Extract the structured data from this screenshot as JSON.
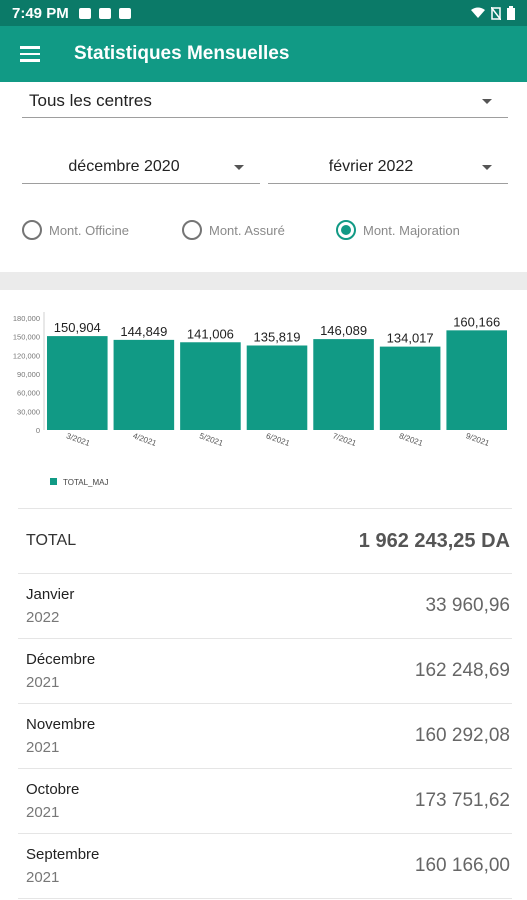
{
  "status_bar": {
    "time": "7:49 PM"
  },
  "app_bar": {
    "title": "Statistiques Mensuelles"
  },
  "filters": {
    "center": "Tous les centres",
    "from": "décembre 2020",
    "to": "février 2022"
  },
  "radios": [
    {
      "label": "Mont. Officine",
      "checked": false
    },
    {
      "label": "Mont. Assuré",
      "checked": false
    },
    {
      "label": "Mont. Majoration",
      "checked": true
    }
  ],
  "chart_data": {
    "type": "bar",
    "categories": [
      "3/2021",
      "4/2021",
      "5/2021",
      "6/2021",
      "7/2021",
      "8/2021",
      "9/2021"
    ],
    "series": [
      {
        "name": "TOTAL_MAJ",
        "values": [
          150904,
          144849,
          141006,
          135819,
          146089,
          134017,
          160166
        ]
      }
    ],
    "data_labels": [
      "150,904",
      "144,849",
      "141,006",
      "135,819",
      "146,089",
      "134,017",
      "160,166"
    ],
    "yticks": [
      "0",
      "30,000",
      "60,000",
      "90,000",
      "120,000",
      "150,000",
      "180,000"
    ],
    "ylim": [
      0,
      180000
    ],
    "color": "#119a85",
    "legend_position": "bottom-left"
  },
  "summary": {
    "total_label": "TOTAL",
    "total_value": "1 962 243,25 DA",
    "months": [
      {
        "month": "Janvier",
        "year": "2022",
        "value": "33 960,96"
      },
      {
        "month": "Décembre",
        "year": "2021",
        "value": "162 248,69"
      },
      {
        "month": "Novembre",
        "year": "2021",
        "value": "160 292,08"
      },
      {
        "month": "Octobre",
        "year": "2021",
        "value": "173 751,62"
      },
      {
        "month": "Septembre",
        "year": "2021",
        "value": "160 166,00"
      }
    ]
  },
  "colors": {
    "app_bar": "#119a85",
    "status_bar": "#0b7a68",
    "accent": "#119a85"
  }
}
